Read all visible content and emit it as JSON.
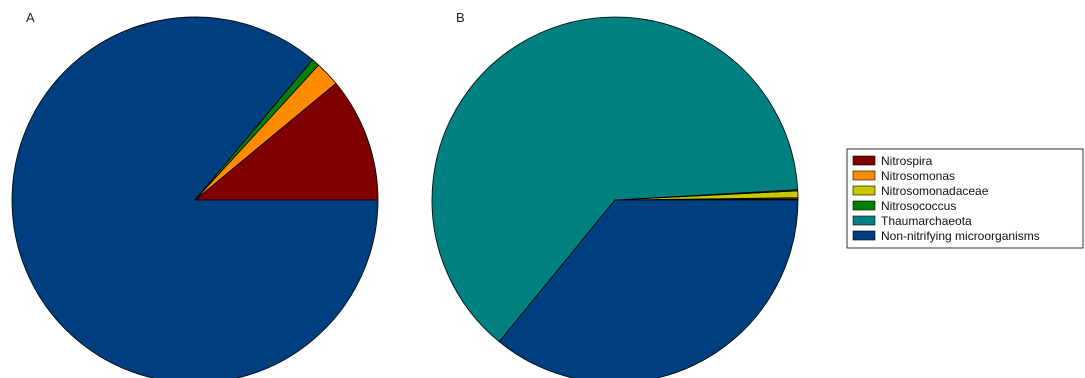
{
  "chart_data": [
    {
      "type": "pie",
      "panel_label": "A",
      "start_angle_deg": 0,
      "direction": "counterclockwise",
      "slices": [
        {
          "label": "Nitrospira",
          "value": 11.0,
          "color": "#800000"
        },
        {
          "label": "Nitrosomonas",
          "value": 2.2,
          "color": "#ff8c00"
        },
        {
          "label": "Nitrosomonadaceae",
          "value": 0.0,
          "color": "#c8c800"
        },
        {
          "label": "Nitrosococcus",
          "value": 0.7,
          "color": "#008000"
        },
        {
          "label": "Thaumarchaeota",
          "value": 0.0,
          "color": "#008080"
        },
        {
          "label": "Non-nitrifying microorganisms",
          "value": 86.1,
          "color": "#003f7f"
        }
      ]
    },
    {
      "type": "pie",
      "panel_label": "B",
      "start_angle_deg": 0,
      "direction": "counterclockwise",
      "slices": [
        {
          "label": "Nitrospira",
          "value": 0.1,
          "color": "#800000"
        },
        {
          "label": "Nitrosomonas",
          "value": 0.1,
          "color": "#ff8c00"
        },
        {
          "label": "Nitrosomonadaceae",
          "value": 0.6,
          "color": "#c8c800"
        },
        {
          "label": "Nitrosococcus",
          "value": 0.1,
          "color": "#008000"
        },
        {
          "label": "Thaumarchaeota",
          "value": 63.2,
          "color": "#008080"
        },
        {
          "label": "Non-nitrifying microorganisms",
          "value": 35.9,
          "color": "#003f7f"
        }
      ]
    }
  ],
  "legend": {
    "placement": "right",
    "entries": [
      {
        "label": "Nitrospira",
        "color": "#800000"
      },
      {
        "label": "Nitrosomonas",
        "color": "#ff8c00"
      },
      {
        "label": "Nitrosomonadaceae",
        "color": "#c8c800"
      },
      {
        "label": "Nitrosococcus",
        "color": "#008000"
      },
      {
        "label": "Thaumarchaeota",
        "color": "#008080"
      },
      {
        "label": "Non-nitrifying microorganisms",
        "color": "#003f7f"
      }
    ]
  }
}
